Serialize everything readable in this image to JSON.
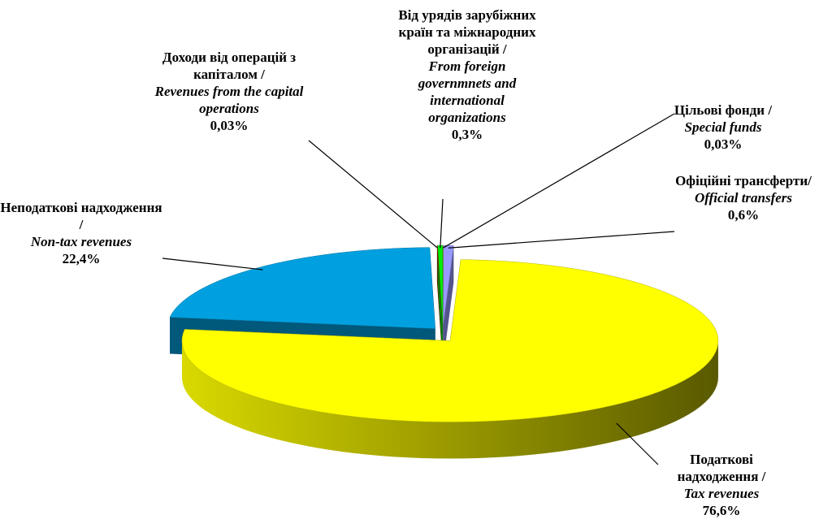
{
  "chart_data": {
    "type": "pie",
    "categories": [
      "Цільові фонди /",
      "Офіційні трансферти/",
      "Податкові надходження /",
      "Неподаткові надходження /",
      "Доходи від операцій з капіталом /",
      "Від урядів зарубіжних країн та міжнародних організацій /"
    ],
    "categories_en": [
      "Special funds",
      "Official transfers",
      "Tax revenues",
      "Non-tax revenues",
      "Revenues from the capital operations",
      "From foreign governmnets and international organizations"
    ],
    "values": [
      0.03,
      0.6,
      76.6,
      22.4,
      0.03,
      0.3
    ],
    "value_labels": [
      "0,03%",
      "0,6%",
      "76,6%",
      "22,4%",
      "0,03%",
      "0,3%"
    ],
    "colors": [
      "#e0a000",
      "#9999ff",
      "#ffff00",
      "#00a0e0",
      "#d00000",
      "#00ee00"
    ]
  }
}
